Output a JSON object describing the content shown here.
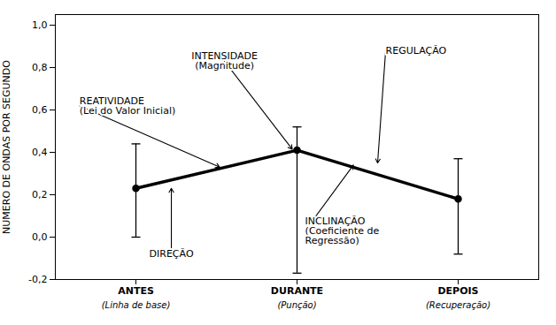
{
  "chart_data": {
    "type": "line",
    "x": [
      0,
      1,
      2
    ],
    "values": [
      0.23,
      0.41,
      0.18
    ],
    "error_upper": [
      0.44,
      0.52,
      0.37
    ],
    "error_lower": [
      0.0,
      -0.17,
      -0.08
    ],
    "xlim": [
      -0.5,
      2.5
    ],
    "xticks": [
      {
        "value": 0,
        "label": "ANTES"
      },
      {
        "value": 1,
        "label": "DURANTE"
      },
      {
        "value": 2,
        "label": "DEPOIS"
      }
    ],
    "x_sublabels": [
      "(Linha de base)",
      "(Punção)",
      "(Recuperação)"
    ],
    "ylim": [
      -0.2,
      1.05
    ],
    "yticks": [
      {
        "value": -0.2,
        "label": "-0,2"
      },
      {
        "value": 0.0,
        "label": "0,0"
      },
      {
        "value": 0.2,
        "label": "0,2"
      },
      {
        "value": 0.4,
        "label": "0,4"
      },
      {
        "value": 0.6,
        "label": "0,6"
      },
      {
        "value": 0.8,
        "label": "0,8"
      },
      {
        "value": 1.0,
        "label": "1,0"
      }
    ],
    "ylabel": "NUMERO DE ONDAS POR SEGUNDO",
    "color": "black",
    "marker": "circle",
    "grid": false,
    "annotations": [
      {
        "text": "INTENSIDADE\n(Magnitude)",
        "x": 0.97,
        "y": 0.415,
        "text_x": 0.55,
        "text_y": 0.83
      },
      {
        "text": "REATIVIDADE\n(Lei do Valor Inicial)",
        "x": 0.52,
        "y": 0.33,
        "text_x": -0.35,
        "text_y": 0.62
      },
      {
        "text": "DIREÇÃO",
        "x": 0.22,
        "y": 0.23,
        "text_x": 0.22,
        "text_y": -0.06
      },
      {
        "text": "REGULAÇÃO",
        "x": 1.5,
        "y": 0.35,
        "text_x": 1.55,
        "text_y": 0.88
      },
      {
        "text": "INCLINAÇÃO\n(Coeficiente de\nRegressão)",
        "x": 1.35,
        "y": 0.34,
        "text_x": 1.05,
        "text_y": 0.03
      }
    ]
  }
}
